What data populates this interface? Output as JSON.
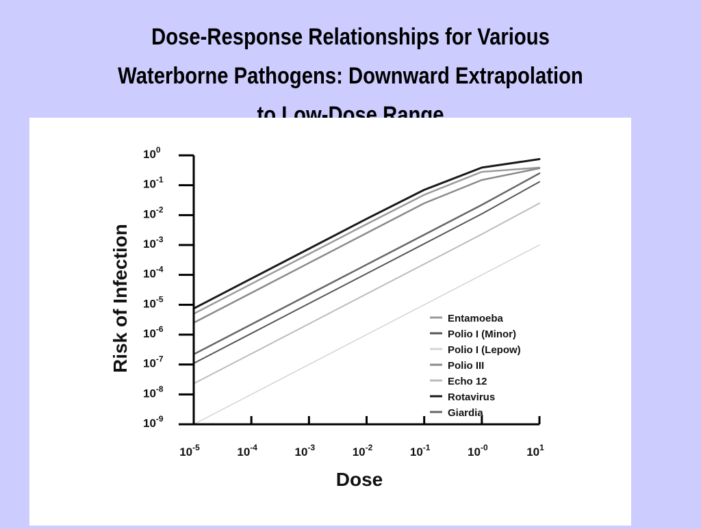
{
  "slide": {
    "title_lines": [
      "Dose-Response Relationships for Various",
      "Waterborne Pathogens:  Downward Extrapolation",
      "to Low-Dose Range"
    ],
    "background": "#ccccff"
  },
  "chart_data": {
    "type": "line",
    "xlabel": "Dose",
    "ylabel": "Risk of Infection",
    "xscale": "log",
    "yscale": "log",
    "xlim": [
      1e-05,
      10
    ],
    "ylim": [
      1e-09,
      1
    ],
    "x_ticks": [
      {
        "value": 1e-05,
        "base": "10",
        "exp": "-5"
      },
      {
        "value": 0.0001,
        "base": "10",
        "exp": "-4"
      },
      {
        "value": 0.001,
        "base": "10",
        "exp": "-3"
      },
      {
        "value": 0.01,
        "base": "10",
        "exp": "-2"
      },
      {
        "value": 0.1,
        "base": "10",
        "exp": "-1"
      },
      {
        "value": 1,
        "base": "10",
        "exp": "-0"
      },
      {
        "value": 10,
        "base": "10",
        "exp": "1"
      }
    ],
    "y_ticks": [
      {
        "value": 1,
        "base": "10",
        "exp": "0"
      },
      {
        "value": 0.1,
        "base": "10",
        "exp": "-1"
      },
      {
        "value": 0.01,
        "base": "10",
        "exp": "-2"
      },
      {
        "value": 0.001,
        "base": "10",
        "exp": "-3"
      },
      {
        "value": 0.0001,
        "base": "10",
        "exp": "-4"
      },
      {
        "value": 1e-05,
        "base": "10",
        "exp": "-5"
      },
      {
        "value": 1e-06,
        "base": "10",
        "exp": "-6"
      },
      {
        "value": 1e-07,
        "base": "10",
        "exp": "-7"
      },
      {
        "value": 1e-08,
        "base": "10",
        "exp": "-8"
      },
      {
        "value": 1e-09,
        "base": "10",
        "exp": "-9"
      }
    ],
    "grid": false,
    "legend_position": "bottom-right",
    "x": [
      1e-05,
      0.0001,
      0.001,
      0.01,
      0.1,
      1,
      10
    ],
    "series": [
      {
        "name": "Entamoeba",
        "color": "#9a9a9a",
        "width": 2.5,
        "values": [
          5e-06,
          5e-05,
          0.0005,
          0.005,
          0.048,
          0.28,
          0.39
        ]
      },
      {
        "name": "Polio I (Minor)",
        "color": "#555555",
        "width": 2,
        "values": [
          1.1e-07,
          1.1e-06,
          1.1e-05,
          0.00011,
          0.0011,
          0.011,
          0.13
        ]
      },
      {
        "name": "Polio I (Lepow)",
        "color": "#d4d4d4",
        "width": 1.5,
        "values": [
          1e-09,
          1e-08,
          1e-07,
          1e-06,
          1e-05,
          0.0001,
          0.001
        ]
      },
      {
        "name": "Polio III",
        "color": "#8a8a8a",
        "width": 2.5,
        "values": [
          2.5e-06,
          2.5e-05,
          0.00025,
          0.0025,
          0.025,
          0.15,
          0.37
        ]
      },
      {
        "name": "Echo 12",
        "color": "#bbbbbb",
        "width": 2,
        "values": [
          2.3e-08,
          2.3e-07,
          2.3e-06,
          2.3e-05,
          0.00023,
          0.0023,
          0.025
        ]
      },
      {
        "name": "Rotavirus",
        "color": "#1a1a1a",
        "width": 3,
        "values": [
          7.5e-06,
          7.5e-05,
          0.00075,
          0.0075,
          0.07,
          0.39,
          0.75
        ]
      },
      {
        "name": "Giardia",
        "color": "#666666",
        "width": 2.5,
        "values": [
          2.2e-07,
          2.2e-06,
          2.2e-05,
          0.00022,
          0.0022,
          0.022,
          0.25
        ]
      }
    ]
  }
}
